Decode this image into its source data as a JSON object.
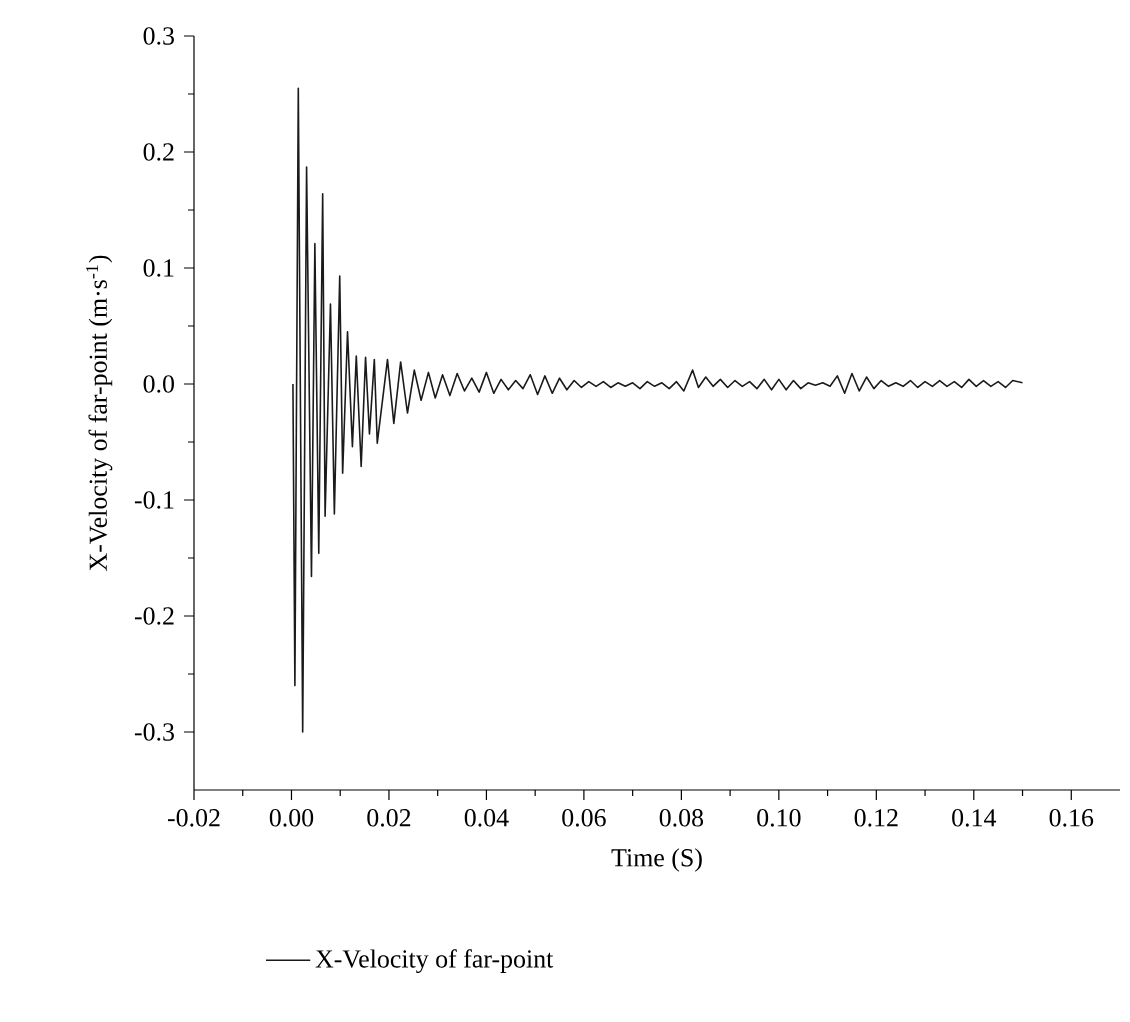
{
  "chart_data": {
    "type": "line",
    "xlabel": "Time (S)",
    "ylabel": "X-Velocity of far-point (m·s$^{-1}$)",
    "xlim": [
      -0.02,
      0.17
    ],
    "ylim": [
      -0.35,
      0.3
    ],
    "xticks": [
      {
        "value": -0.02,
        "label": "-0.02"
      },
      {
        "value": 0,
        "label": "0.00"
      },
      {
        "value": 0.02,
        "label": "0.02"
      },
      {
        "value": 0.04,
        "label": "0.04"
      },
      {
        "value": 0.06,
        "label": "0.06"
      },
      {
        "value": 0.08,
        "label": "0.08"
      },
      {
        "value": 0.1,
        "label": "0.10"
      },
      {
        "value": 0.12,
        "label": "0.12"
      },
      {
        "value": 0.14,
        "label": "0.14"
      },
      {
        "value": 0.16,
        "label": "0.16"
      }
    ],
    "yticks": [
      {
        "value": -0.3,
        "label": "-0.3"
      },
      {
        "value": -0.2,
        "label": "-0.2"
      },
      {
        "value": -0.1,
        "label": "-0.1"
      },
      {
        "value": 0,
        "label": "0.0"
      },
      {
        "value": 0.1,
        "label": "0.1"
      },
      {
        "value": 0.2,
        "label": "0.2"
      },
      {
        "value": 0.3,
        "label": "0.3"
      }
    ],
    "legend": "bottom",
    "marker": "none",
    "line_style": "solid",
    "series": [
      {
        "name": "X-Velocity of far-point",
        "color": "#1a1a1a",
        "x": [
          0.0003,
          0.0007,
          0.0014,
          0.0023,
          0.0031,
          0.0041,
          0.0048,
          0.0056,
          0.0064,
          0.0069,
          0.008,
          0.0088,
          0.0099,
          0.0105,
          0.0115,
          0.0125,
          0.0133,
          0.0143,
          0.0152,
          0.016,
          0.017,
          0.0176,
          0.0197,
          0.021,
          0.0224,
          0.0238,
          0.0252,
          0.0266,
          0.0281,
          0.0295,
          0.031,
          0.0325,
          0.034,
          0.0355,
          0.037,
          0.0385,
          0.04,
          0.0415,
          0.043,
          0.0445,
          0.046,
          0.0475,
          0.049,
          0.0505,
          0.052,
          0.0535,
          0.055,
          0.0565,
          0.058,
          0.0595,
          0.061,
          0.0625,
          0.064,
          0.0655,
          0.067,
          0.0685,
          0.07,
          0.0715,
          0.073,
          0.0745,
          0.076,
          0.0775,
          0.079,
          0.0805,
          0.0823,
          0.0835,
          0.085,
          0.0865,
          0.088,
          0.0895,
          0.091,
          0.0925,
          0.094,
          0.0955,
          0.097,
          0.0985,
          0.1,
          0.1015,
          0.103,
          0.1045,
          0.106,
          0.1075,
          0.109,
          0.1105,
          0.112,
          0.1135,
          0.115,
          0.1165,
          0.118,
          0.1195,
          0.121,
          0.1225,
          0.124,
          0.1255,
          0.127,
          0.1285,
          0.13,
          0.1315,
          0.133,
          0.1345,
          0.136,
          0.1375,
          0.139,
          0.1405,
          0.142,
          0.1435,
          0.145,
          0.1465,
          0.148,
          0.15
        ],
        "values": [
          0.0,
          -0.26,
          0.255,
          -0.3,
          0.187,
          -0.166,
          0.121,
          -0.146,
          0.164,
          -0.114,
          0.069,
          -0.112,
          0.093,
          -0.077,
          0.045,
          -0.054,
          0.024,
          -0.071,
          0.023,
          -0.043,
          0.021,
          -0.051,
          0.021,
          -0.034,
          0.019,
          -0.025,
          0.012,
          -0.014,
          0.01,
          -0.012,
          0.008,
          -0.01,
          0.009,
          -0.006,
          0.005,
          -0.007,
          0.01,
          -0.008,
          0.004,
          -0.005,
          0.003,
          -0.004,
          0.008,
          -0.009,
          0.007,
          -0.008,
          0.005,
          -0.005,
          0.003,
          -0.003,
          0.002,
          -0.002,
          0.002,
          -0.003,
          0.001,
          -0.002,
          0.001,
          -0.004,
          0.002,
          -0.002,
          0.001,
          -0.004,
          0.002,
          -0.006,
          0.012,
          -0.003,
          0.006,
          -0.002,
          0.004,
          -0.003,
          0.003,
          -0.002,
          0.002,
          -0.004,
          0.004,
          -0.005,
          0.004,
          -0.005,
          0.003,
          -0.004,
          0.001,
          -0.001,
          0.001,
          -0.002,
          0.007,
          -0.008,
          0.009,
          -0.006,
          0.006,
          -0.004,
          0.003,
          -0.002,
          0.001,
          -0.002,
          0.003,
          -0.003,
          0.002,
          -0.002,
          0.003,
          -0.002,
          0.002,
          -0.003,
          0.004,
          -0.002,
          0.003,
          -0.002,
          0.002,
          -0.003,
          0.003,
          0.001
        ]
      }
    ]
  }
}
